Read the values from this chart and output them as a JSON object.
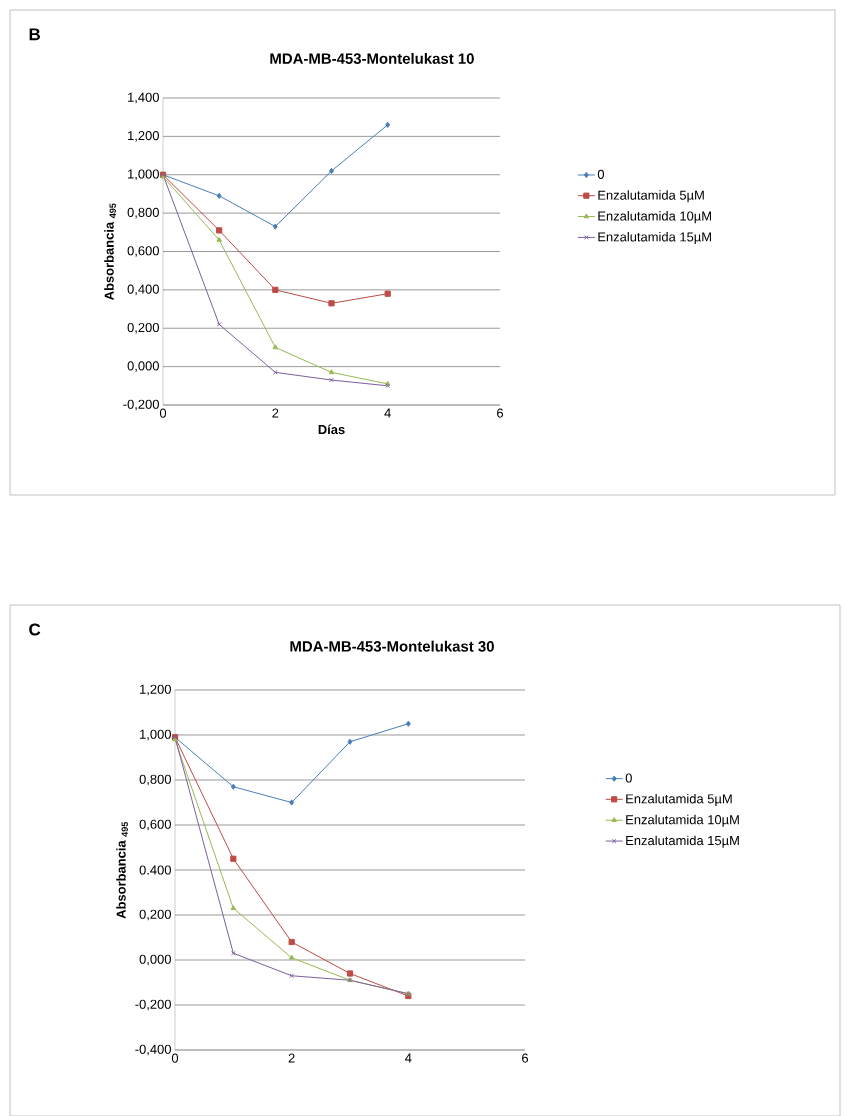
{
  "chart_data": [
    {
      "type": "line",
      "title": "MDA-MB-453-Montelukast 10",
      "xlabel": "Días",
      "ylabel": "Absorbancia $_{495}$",
      "annotations": [
        "B"
      ],
      "x": [
        0,
        1,
        2,
        3,
        4
      ],
      "series": [
        {
          "name": "0",
          "color": "#4a7ebb",
          "marker": "diamond",
          "values": [
            1.0,
            0.89,
            0.73,
            1.02,
            1.26
          ]
        },
        {
          "name": "Enzalutamida 5µM",
          "color": "#be4b48",
          "marker": "square",
          "values": [
            1.0,
            0.71,
            0.4,
            0.33,
            0.38
          ]
        },
        {
          "name": "Enzalutamida 10µM",
          "color": "#98b954",
          "marker": "triangle",
          "values": [
            0.99,
            0.66,
            0.1,
            -0.03,
            -0.09
          ]
        },
        {
          "name": "Enzalutamida 15µM",
          "color": "#7d60a0",
          "marker": "cross",
          "values": [
            1.0,
            0.22,
            -0.03,
            -0.07,
            -0.1
          ]
        }
      ],
      "xlim": [
        0,
        6
      ],
      "xticks": [
        0,
        2,
        4,
        6
      ],
      "ylim": [
        -0.2,
        1.4
      ],
      "yticks": [
        {
          "value": -0.2,
          "label": "-0,200"
        },
        {
          "value": 0,
          "label": "0,000"
        },
        {
          "value": 0.2,
          "label": "0,200"
        },
        {
          "value": 0.4,
          "label": "0,400"
        },
        {
          "value": 0.6,
          "label": "0,600"
        },
        {
          "value": 0.8,
          "label": "0,800"
        },
        {
          "value": 1.0,
          "label": "1,000"
        },
        {
          "value": 1.2,
          "label": "1,200"
        },
        {
          "value": 1.4,
          "label": "1,400"
        }
      ],
      "grid": "y",
      "legend": "right"
    },
    {
      "type": "line",
      "title": "MDA-MB-453-Montelukast 30",
      "ylabel": "Absorbancia $_{495}$",
      "annotations": [
        "C"
      ],
      "x": [
        0,
        1,
        2,
        3,
        4
      ],
      "series": [
        {
          "name": "0",
          "color": "#4a7ebb",
          "marker": "diamond",
          "values": [
            0.99,
            0.77,
            0.7,
            0.97,
            1.05
          ]
        },
        {
          "name": "Enzalutamida 5µM",
          "color": "#be4b48",
          "marker": "square",
          "values": [
            0.99,
            0.45,
            0.08,
            -0.06,
            -0.16
          ]
        },
        {
          "name": "Enzalutamida 10µM",
          "color": "#98b954",
          "marker": "triangle",
          "values": [
            0.98,
            0.23,
            0.01,
            -0.09,
            -0.15
          ]
        },
        {
          "name": "Enzalutamida 15µM",
          "color": "#7d60a0",
          "marker": "cross",
          "values": [
            0.99,
            0.03,
            -0.07,
            -0.09,
            -0.15
          ]
        }
      ],
      "xlim": [
        0,
        6
      ],
      "xticks": [
        0,
        2,
        4,
        6
      ],
      "ylim": [
        -0.4,
        1.2
      ],
      "yticks": [
        {
          "value": -0.4,
          "label": "-0,400"
        },
        {
          "value": -0.2,
          "label": "-0,200"
        },
        {
          "value": 0,
          "label": "0,000"
        },
        {
          "value": 0.2,
          "label": "0,200"
        },
        {
          "value": 0.4,
          "label": "0.400"
        },
        {
          "value": 0.6,
          "label": "0,600"
        },
        {
          "value": 0.8,
          "label": "0,800"
        },
        {
          "value": 1.0,
          "label": "1,000"
        },
        {
          "value": 1.2,
          "label": "1,200"
        }
      ],
      "grid": "y",
      "legend": "right"
    }
  ]
}
